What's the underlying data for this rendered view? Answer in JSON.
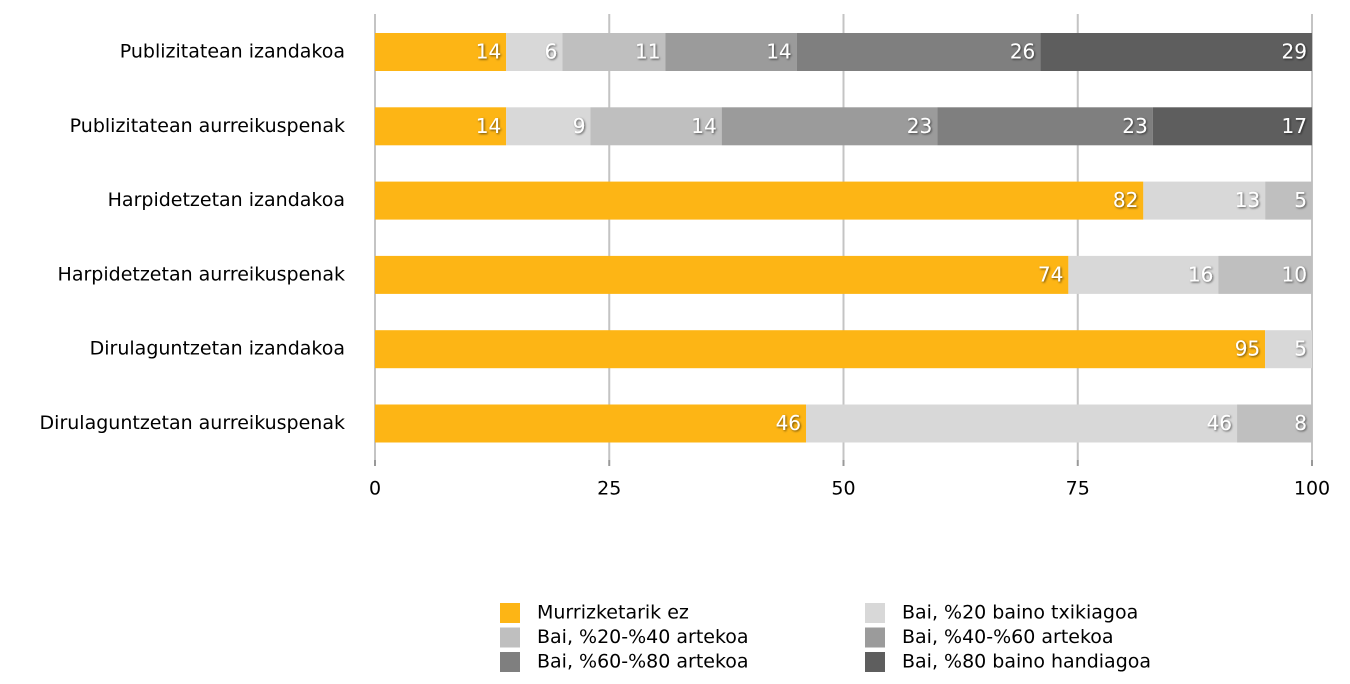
{
  "chart_data": {
    "type": "stacked_bar_horizontal",
    "categories": [
      "Publizitatean izandakoa",
      "Publizitatean aurreikuspenak",
      "Harpidetzetan izandakoa",
      "Harpidetzetan aurreikuspenak",
      "Dirulaguntzetan izandakoa",
      "Dirulaguntzetan aurreikuspenak"
    ],
    "series": [
      {
        "name": "Murrizketarik ez",
        "color": "#fdb515",
        "values": [
          14,
          14,
          82,
          74,
          95,
          46
        ]
      },
      {
        "name": "Bai, %20 baino txikiagoa",
        "color": "#d8d8d8",
        "values": [
          6,
          9,
          13,
          16,
          5,
          46
        ]
      },
      {
        "name": "Bai, %20-%40 artekoa",
        "color": "#bfbfbf",
        "values": [
          11,
          14,
          5,
          10,
          null,
          8
        ]
      },
      {
        "name": "Bai, %40-%60 artekoa",
        "color": "#9b9b9b",
        "values": [
          14,
          23,
          null,
          null,
          null,
          null
        ]
      },
      {
        "name": "Bai, %60-%80 artekoa",
        "color": "#7f7f7f",
        "values": [
          26,
          23,
          null,
          null,
          null,
          null
        ]
      },
      {
        "name": "Bai, %80 baino handiagoa",
        "color": "#5e5e5e",
        "values": [
          29,
          17,
          null,
          null,
          null,
          null
        ]
      }
    ],
    "xlim": [
      0,
      100
    ],
    "xticks": [
      0,
      25,
      50,
      75,
      100
    ],
    "grid": true,
    "legend": "bottom"
  }
}
